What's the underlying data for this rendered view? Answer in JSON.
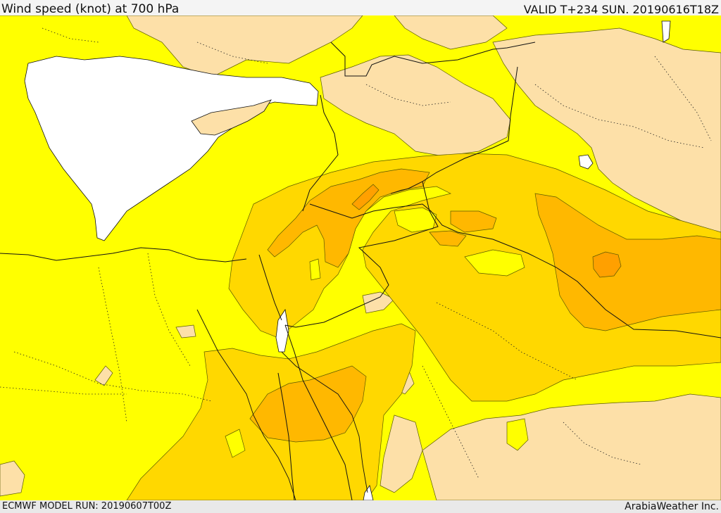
{
  "header": {
    "title": "Wind speed (knot) at 700 hPa",
    "valid_time": "VALID T+234 SUN. 20190616T18Z"
  },
  "footer": {
    "model_run": "ECMWF MODEL RUN: 20190607T00Z",
    "credit": "ArabiaWeather Inc."
  },
  "palette": {
    "sea": "#ffffff",
    "calm": "#fde0a8",
    "light": "#ffff00",
    "moderate": "#ffd800",
    "strong": "#ffb800",
    "stronger": "#ffa000",
    "contour": "#5a5a00",
    "border": "#111111"
  }
}
